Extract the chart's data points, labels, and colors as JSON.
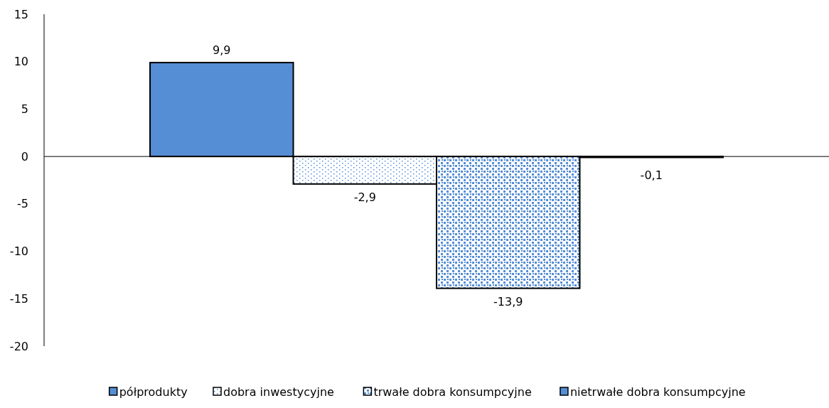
{
  "chart_data": {
    "type": "bar",
    "categories": [
      null
    ],
    "ylim": [
      -20,
      15
    ],
    "yticks": [
      -20,
      -15,
      -10,
      -5,
      0,
      5,
      10,
      15
    ],
    "legend": "bottom",
    "series": [
      {
        "name": "półprodukty",
        "color": "#558ed5",
        "values": [
          9.9
        ],
        "value_labels": [
          "9,9"
        ]
      },
      {
        "name": "dobra inwestycyjne",
        "color": "#558ed5",
        "values": [
          -2.9
        ],
        "value_labels": [
          "-2,9"
        ]
      },
      {
        "name": "trwałe dobra konsumpcyjne",
        "color": "#558ed5",
        "values": [
          -13.9
        ],
        "value_labels": [
          "-13,9"
        ]
      },
      {
        "name": "nietrwałe dobra konsumpcyjne",
        "color": "#558ed5",
        "values": [
          -0.1
        ],
        "value_labels": [
          "-0,1"
        ]
      }
    ]
  }
}
